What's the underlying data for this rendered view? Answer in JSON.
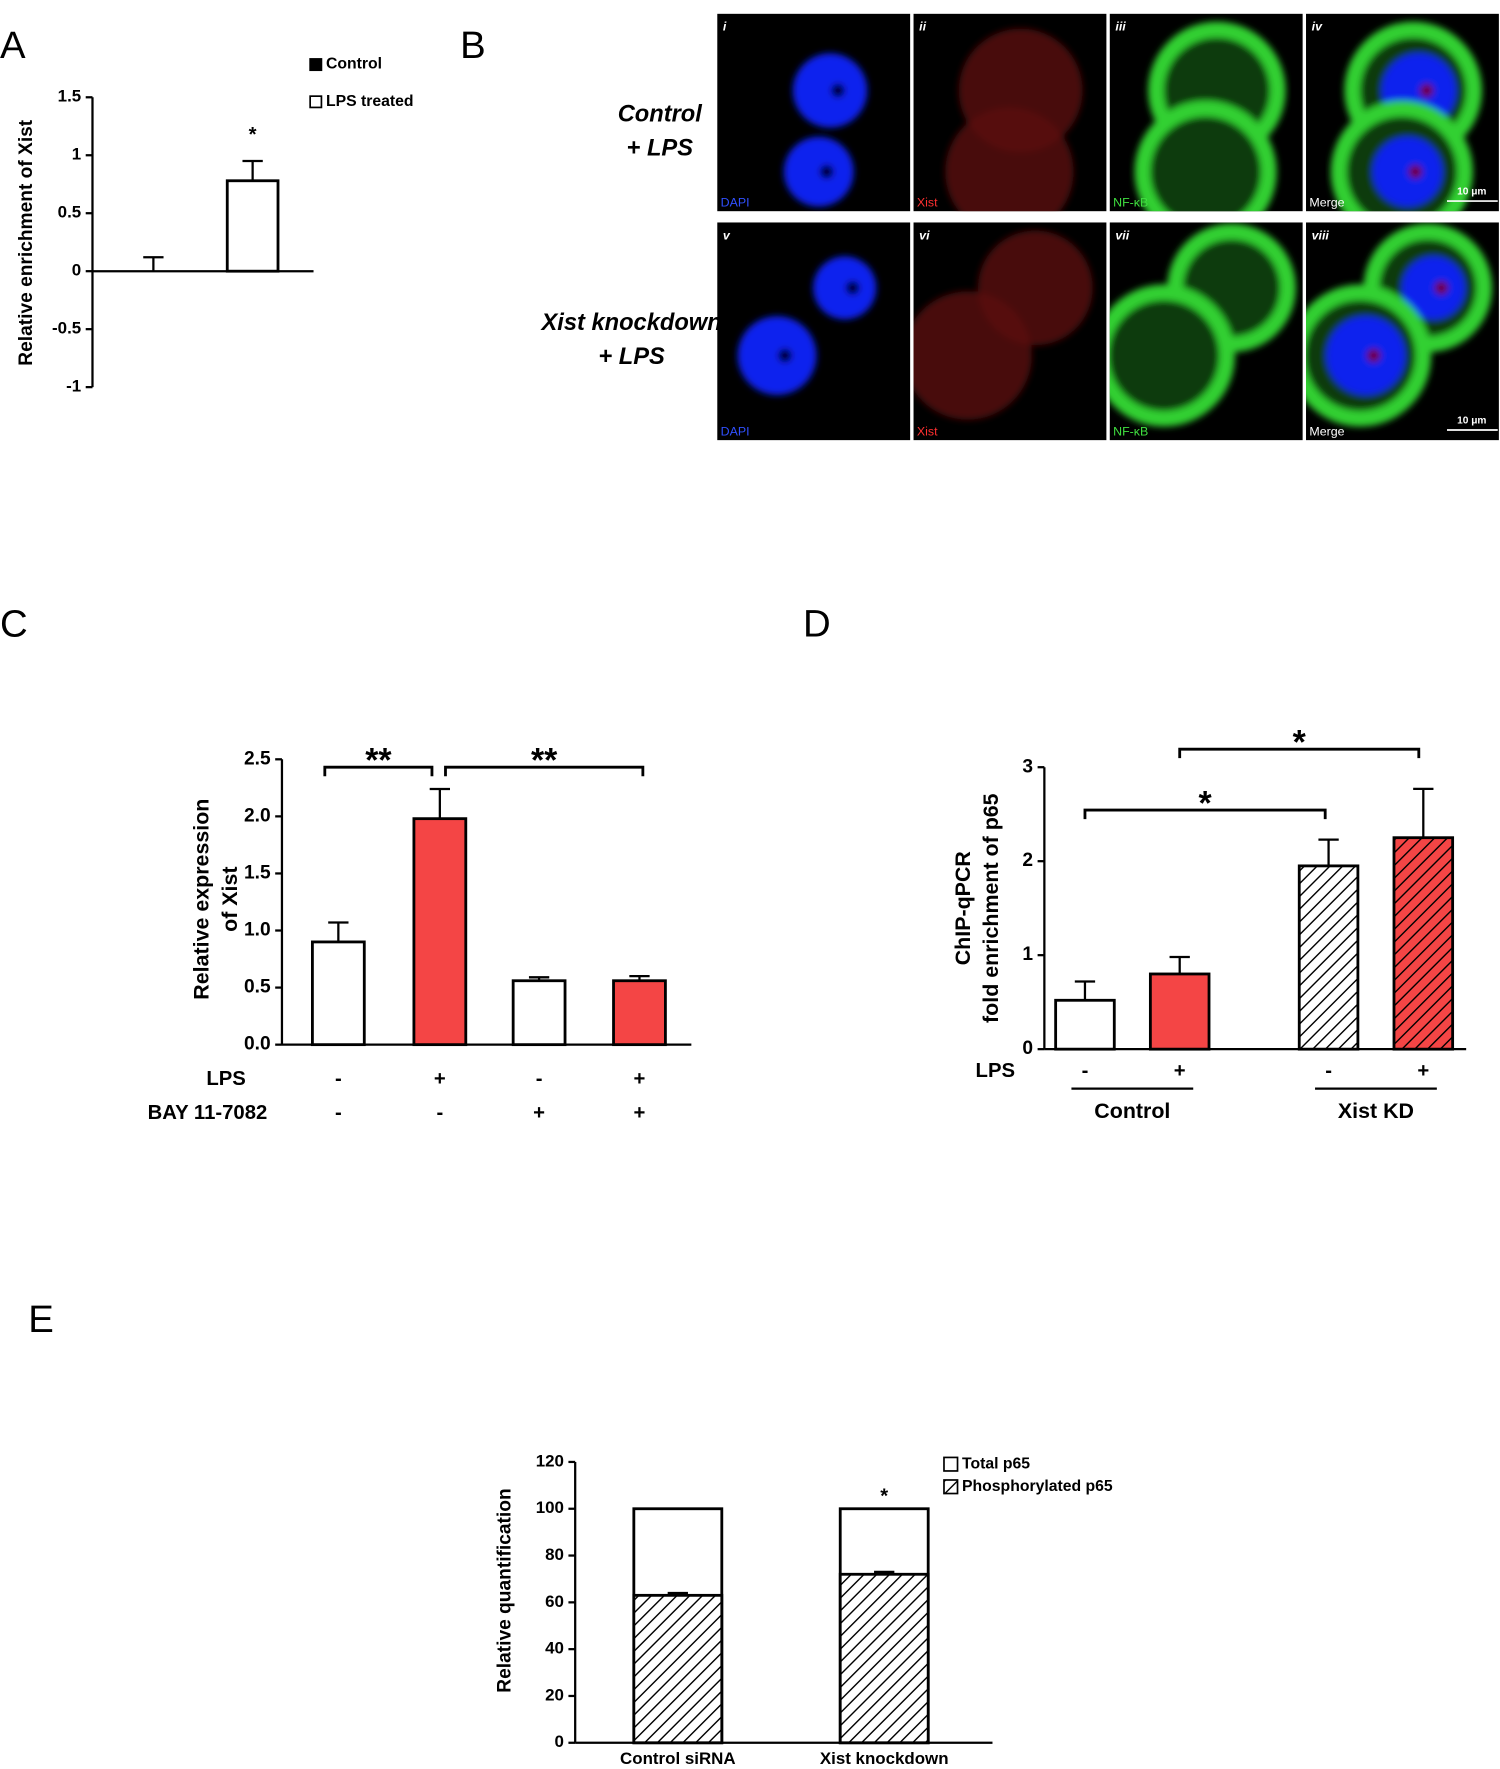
{
  "figure_labels": [
    "A",
    "B",
    "C",
    "D",
    "E"
  ],
  "micrograph": {
    "rows": [
      {
        "label": [
          "Control",
          "+ LPS"
        ],
        "panels": [
          {
            "numeral": "i",
            "channel": "DAPI"
          },
          {
            "numeral": "ii",
            "channel": "Xist"
          },
          {
            "numeral": "iii",
            "channel": "NF-κB"
          },
          {
            "numeral": "iv",
            "channel": "Merge"
          }
        ]
      },
      {
        "label": [
          "Xist knockdown",
          "+ LPS"
        ],
        "panels": [
          {
            "numeral": "v",
            "channel": "DAPI"
          },
          {
            "numeral": "vi",
            "channel": "Xist"
          },
          {
            "numeral": "vii",
            "channel": "NF-κB"
          },
          {
            "numeral": "viii",
            "channel": "Merge"
          }
        ]
      }
    ],
    "scale_bar": "10 μm"
  },
  "chart_data": [
    {
      "type": "bar",
      "ylabel": "Relative enrichment of Xist",
      "ylim": [
        -1,
        1.5
      ],
      "yticks": [
        -1,
        -0.5,
        0,
        0.5,
        1,
        1.5
      ],
      "series": [
        {
          "name": "Control",
          "color": "#000000",
          "values": [
            0
          ],
          "errors": [
            0.12
          ]
        },
        {
          "name": "LPS treated",
          "color": "#ffffff",
          "values": [
            0.78
          ],
          "errors": [
            0.17
          ]
        }
      ],
      "annotations": [
        "*"
      ]
    },
    {
      "type": "bar",
      "ylabel": [
        "Relative expression",
        "of Xist"
      ],
      "ylim": [
        0,
        2.5
      ],
      "yticks": [
        {
          "value": 0,
          "label": "0.0"
        },
        {
          "value": 0.5,
          "label": "0.5"
        },
        {
          "value": 1,
          "label": "1.0"
        },
        {
          "value": 1.5,
          "label": "1.5"
        },
        {
          "value": 2,
          "label": "2.0"
        },
        {
          "value": 2.5,
          "label": "2.5"
        }
      ],
      "values": [
        0.9,
        1.98,
        0.56,
        0.56
      ],
      "errors": [
        0.17,
        0.26,
        0.03,
        0.04
      ],
      "colors": [
        "#ffffff",
        "#f44545",
        "#ffffff",
        "#f44545"
      ],
      "conditions": [
        {
          "name": "LPS",
          "values": [
            "-",
            "+",
            "-",
            "+"
          ]
        },
        {
          "name": "BAY 11-7082",
          "values": [
            "-",
            "-",
            "+",
            "+"
          ]
        }
      ],
      "annotations": [
        "**",
        "**"
      ]
    },
    {
      "type": "bar",
      "ylabel": [
        "ChIP-qPCR",
        "fold enrichment of p65"
      ],
      "ylim": [
        0,
        3
      ],
      "yticks": [
        0,
        1,
        2,
        3
      ],
      "values": [
        0.52,
        0.8,
        1.95,
        2.25
      ],
      "errors": [
        0.2,
        0.18,
        0.28,
        0.52
      ],
      "colors": [
        "#ffffff",
        "#f44545",
        "#ffffff",
        "#f44545"
      ],
      "hatched": [
        false,
        false,
        true,
        true
      ],
      "conditions": [
        {
          "name": "LPS",
          "values": [
            "-",
            "+",
            "-",
            "+"
          ]
        }
      ],
      "groups": [
        "Control",
        "Xist KD"
      ],
      "annotations": [
        "*",
        "*"
      ]
    },
    {
      "type": "bar",
      "ylabel": "Relative quantification",
      "ylim": [
        0,
        120
      ],
      "yticks": [
        0,
        20,
        40,
        60,
        80,
        100,
        120
      ],
      "categories": [
        "Control siRNA",
        "Xist knockdown"
      ],
      "series": [
        {
          "name": "Total p65",
          "color": "#ffffff",
          "values": [
            100,
            100
          ]
        },
        {
          "name": "Phosphorylated p65",
          "color": "#ffffff",
          "hatched": true,
          "values": [
            63,
            72
          ],
          "errors": [
            1,
            1
          ]
        }
      ],
      "annotations": [
        "*"
      ]
    }
  ]
}
